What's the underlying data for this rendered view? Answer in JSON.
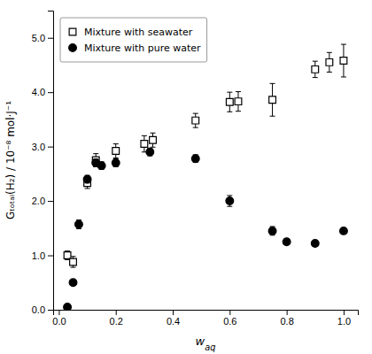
{
  "chart_data": {
    "type": "scatter",
    "xlabel": "waq",
    "ylabel": "Gₜₒₜₐₗ(H₂) / 10⁻⁸ mol·J⁻¹",
    "xlim": [
      -0.02,
      1.05
    ],
    "ylim": [
      0.0,
      5.5
    ],
    "xticks": [
      {
        "value": 0.0,
        "label": "0.0"
      },
      0.2,
      0.4,
      0.6,
      0.8,
      {
        "value": 1.0,
        "label": "1.0"
      }
    ],
    "yticks": [
      {
        "value": 0.0,
        "label": "0.0"
      },
      {
        "value": 1.0,
        "label": "1.0"
      },
      {
        "value": 2.0,
        "label": "2.0"
      },
      {
        "value": 3.0,
        "label": "3.0"
      },
      {
        "value": 4.0,
        "label": "4.0"
      },
      {
        "value": 5.0,
        "label": "5.0"
      }
    ],
    "grid": false,
    "legend": "upper left",
    "series": [
      {
        "name": "Mixture with seawater",
        "color": "black",
        "marker": "square-open",
        "x": [
          0.03,
          0.05,
          0.1,
          0.13,
          0.2,
          0.3,
          0.33,
          0.48,
          0.6,
          0.63,
          0.75,
          0.9,
          0.95,
          1.0
        ],
        "values": [
          1.0,
          0.88,
          2.33,
          2.75,
          2.92,
          3.05,
          3.12,
          3.48,
          3.82,
          3.83,
          3.86,
          4.42,
          4.55,
          4.58
        ],
        "errors": [
          0.08,
          0.1,
          0.1,
          0.12,
          0.13,
          0.15,
          0.13,
          0.13,
          0.18,
          0.18,
          0.3,
          0.15,
          0.18,
          0.3
        ]
      },
      {
        "name": "Mixture with pure water",
        "color": "black",
        "marker": "circle",
        "x": [
          0.03,
          0.05,
          0.07,
          0.1,
          0.13,
          0.15,
          0.2,
          0.32,
          0.48,
          0.6,
          0.75,
          0.8,
          0.9,
          1.0
        ],
        "values": [
          0.05,
          0.5,
          1.57,
          2.4,
          2.7,
          2.65,
          2.7,
          2.9,
          2.78,
          2.0,
          1.45,
          1.25,
          1.22,
          1.45
        ],
        "errors": [
          0.02,
          0.05,
          0.08,
          0.07,
          0.07,
          0.07,
          0.07,
          0.07,
          0.07,
          0.1,
          0.08,
          0.05,
          0.05,
          0.05
        ]
      }
    ]
  }
}
